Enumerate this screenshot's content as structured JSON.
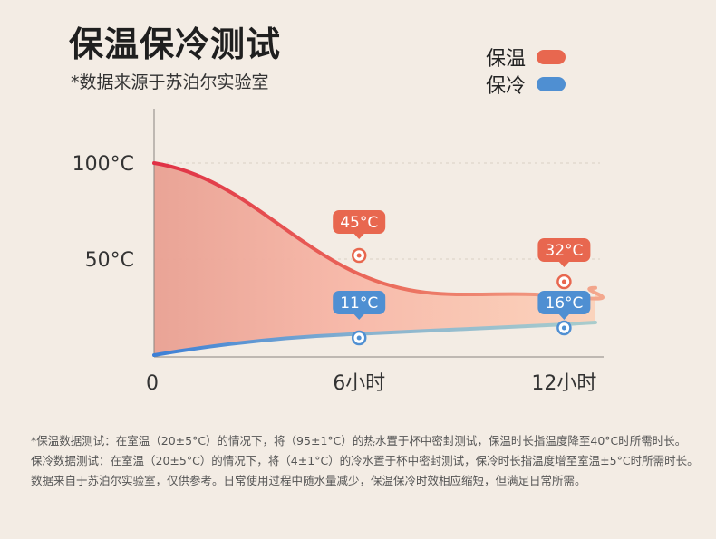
{
  "header": {
    "title": "保温保冷测试",
    "subtitle": "*数据来源于苏泊尔实验室"
  },
  "legend": [
    {
      "label": "保温",
      "color": "#e8674f"
    },
    {
      "label": "保冷",
      "color": "#4f8fd2"
    }
  ],
  "chart_data": {
    "type": "area",
    "x": [
      0,
      6,
      12
    ],
    "x_tick_labels": [
      "0",
      "6小时",
      "12小时"
    ],
    "y_tick_labels": [
      "100°C",
      "50°C"
    ],
    "y_ticks": [
      100,
      50
    ],
    "ylim": [
      0,
      110
    ],
    "xlim": [
      0,
      13
    ],
    "grid": true,
    "series": [
      {
        "name": "保温",
        "color": "#e8674f",
        "start_value": 100,
        "end_value": 35,
        "points": [
          {
            "x": 6,
            "y": 45,
            "label": "45°C"
          },
          {
            "x": 12,
            "y": 32,
            "label": "32°C"
          }
        ]
      },
      {
        "name": "保冷",
        "color": "#4f8fd2",
        "start_value": 0,
        "end_value": 17,
        "points": [
          {
            "x": 6,
            "y": 11,
            "label": "11°C"
          },
          {
            "x": 12,
            "y": 16,
            "label": "16°C"
          }
        ]
      }
    ]
  },
  "notes": [
    "*保温数据测试：在室温（20±5°C）的情况下，将（95±1°C）的热水置于杯中密封测试，保温时长指温度降至40°C时所需时长。",
    "保冷数据测试：在室温（20±5°C）的情况下，将（4±1°C）的冷水置于杯中密封测试，保冷时长指温度增至室温±5°C时所需时长。",
    "数据来自于苏泊尔实验室，仅供参考。日常使用过程中随水量减少，保温保冷时效相应缩短，但满足日常所需。"
  ]
}
